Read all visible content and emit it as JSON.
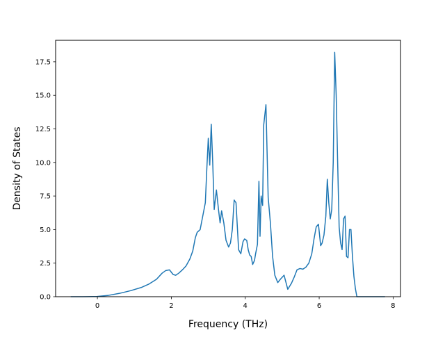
{
  "chart_data": {
    "type": "line",
    "title": "",
    "xlabel": "Frequency (THz)",
    "ylabel": "Density of States",
    "xlim": [
      -1.13,
      8.2
    ],
    "ylim": [
      0,
      19.1
    ],
    "xticks": [
      0,
      2,
      4,
      6,
      8
    ],
    "yticks": [
      0.0,
      2.5,
      5.0,
      7.5,
      10.0,
      12.5,
      15.0,
      17.5
    ],
    "xtick_labels": [
      "0",
      "2",
      "4",
      "6",
      "8"
    ],
    "ytick_labels": [
      "0.0",
      "2.5",
      "5.0",
      "7.5",
      "10.0",
      "12.5",
      "15.0",
      "17.5"
    ],
    "grid": false,
    "colors": {
      "line": "#1f77b4",
      "axes": "#000000",
      "background": "#ffffff"
    },
    "series": [
      {
        "x": [
          -0.72,
          -0.4,
          0.0,
          0.3,
          0.6,
          0.9,
          1.2,
          1.4,
          1.6,
          1.75,
          1.85,
          1.95,
          2.05,
          2.12,
          2.2,
          2.3,
          2.4,
          2.5,
          2.58,
          2.65,
          2.7,
          2.78,
          2.85,
          2.92,
          2.96,
          3.0,
          3.04,
          3.08,
          3.12,
          3.16,
          3.22,
          3.28,
          3.32,
          3.36,
          3.42,
          3.48,
          3.55,
          3.6,
          3.65,
          3.7,
          3.75,
          3.82,
          3.88,
          3.94,
          3.98,
          4.04,
          4.08,
          4.12,
          4.16,
          4.2,
          4.25,
          4.28,
          4.33,
          4.37,
          4.4,
          4.43,
          4.47,
          4.5,
          4.56,
          4.62,
          4.68,
          4.74,
          4.8,
          4.88,
          4.95,
          5.05,
          5.15,
          5.25,
          5.33,
          5.4,
          5.48,
          5.56,
          5.64,
          5.72,
          5.8,
          5.86,
          5.92,
          5.98,
          6.04,
          6.08,
          6.13,
          6.18,
          6.22,
          6.26,
          6.3,
          6.34,
          6.38,
          6.42,
          6.46,
          6.5,
          6.54,
          6.58,
          6.62,
          6.66,
          6.7,
          6.74,
          6.78,
          6.82,
          6.86,
          6.9,
          6.94,
          6.98,
          7.02,
          7.06,
          7.2,
          7.4,
          7.6,
          7.78
        ],
        "y": [
          0,
          0,
          0.02,
          0.1,
          0.25,
          0.45,
          0.7,
          0.95,
          1.3,
          1.75,
          1.95,
          2.0,
          1.65,
          1.6,
          1.75,
          2.0,
          2.3,
          2.8,
          3.4,
          4.4,
          4.8,
          5.0,
          6.0,
          7.0,
          9.5,
          11.8,
          9.8,
          12.85,
          10.0,
          6.5,
          7.95,
          6.4,
          5.5,
          6.4,
          5.5,
          4.2,
          3.7,
          4.0,
          5.0,
          7.2,
          7.0,
          3.5,
          3.2,
          4.1,
          4.3,
          4.2,
          3.5,
          3.1,
          3.0,
          2.4,
          2.7,
          3.2,
          3.9,
          8.6,
          4.5,
          7.5,
          6.8,
          12.8,
          14.3,
          7.4,
          5.5,
          3.0,
          1.6,
          1.05,
          1.3,
          1.6,
          0.55,
          1.0,
          1.5,
          2.0,
          2.1,
          2.05,
          2.2,
          2.5,
          3.2,
          4.3,
          5.2,
          5.4,
          3.8,
          4.0,
          4.6,
          6.0,
          8.75,
          7.0,
          5.8,
          6.5,
          10.0,
          18.2,
          15.0,
          10.0,
          5.2,
          4.0,
          3.5,
          5.8,
          6.0,
          3.0,
          2.9,
          5.0,
          5.0,
          3.0,
          1.5,
          0.6,
          0,
          0,
          0,
          0,
          0,
          0
        ]
      }
    ]
  }
}
